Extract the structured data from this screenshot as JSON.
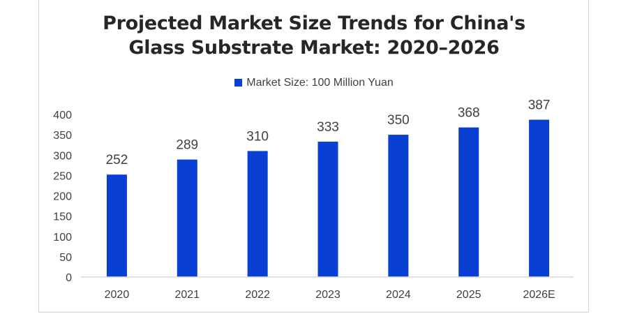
{
  "chart_data": {
    "type": "bar",
    "title_line1": "Projected Market Size Trends for China's",
    "title_line2": "Glass Substrate Market: 2020–2026",
    "xlabel": "",
    "ylabel": "",
    "categories": [
      "2020",
      "2021",
      "2022",
      "2023",
      "2024",
      "2025",
      "2026E"
    ],
    "series": [
      {
        "name": "Market Size: 100 Million Yuan",
        "values": [
          252,
          289,
          310,
          333,
          350,
          368,
          387
        ],
        "color": "#0a3fd4"
      }
    ],
    "ylim": [
      0,
      400
    ],
    "yticks": [
      0,
      50,
      100,
      150,
      200,
      250,
      300,
      350,
      400
    ],
    "grid": false,
    "legend_position": "top-center",
    "data_labels": true
  }
}
